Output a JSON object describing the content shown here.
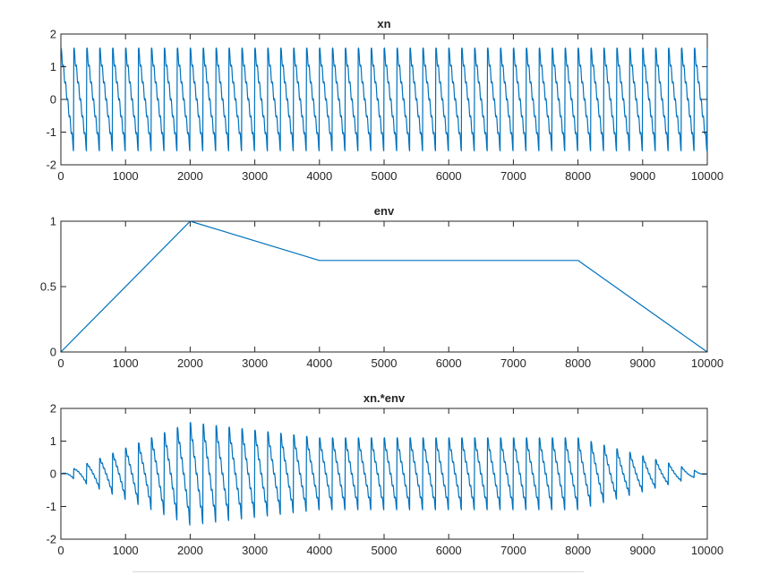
{
  "chart_data": [
    {
      "type": "line",
      "title": "xn",
      "xlabel": "",
      "ylabel": "",
      "xlim": [
        0,
        10000
      ],
      "ylim": [
        -2,
        2
      ],
      "xticks": [
        0,
        1000,
        2000,
        3000,
        4000,
        5000,
        6000,
        7000,
        8000,
        9000,
        10000
      ],
      "yticks": [
        -2,
        -1,
        0,
        1,
        2
      ],
      "grid": false,
      "color": "#0072BD",
      "signal": {
        "shape": "sawtooth with harmonic ripple",
        "period": 200,
        "peak": 1.55,
        "trough": -1.55,
        "x_range": [
          0,
          10000
        ]
      }
    },
    {
      "type": "line",
      "title": "env",
      "xlabel": "",
      "ylabel": "",
      "xlim": [
        0,
        10000
      ],
      "ylim": [
        0,
        1
      ],
      "xticks": [
        0,
        1000,
        2000,
        3000,
        4000,
        5000,
        6000,
        7000,
        8000,
        9000,
        10000
      ],
      "yticks": [
        0,
        0.5,
        1
      ],
      "grid": false,
      "color": "#0072BD",
      "x": [
        0,
        2000,
        4000,
        8000,
        10000
      ],
      "y": [
        0,
        1,
        0.7,
        0.7,
        0
      ]
    },
    {
      "type": "line",
      "title": "xn.*env",
      "xlabel": "",
      "ylabel": "",
      "xlim": [
        0,
        10000
      ],
      "ylim": [
        -2,
        2
      ],
      "xticks": [
        0,
        1000,
        2000,
        3000,
        4000,
        5000,
        6000,
        7000,
        8000,
        9000,
        10000
      ],
      "yticks": [
        -2,
        -1,
        0,
        1,
        2
      ],
      "grid": false,
      "color": "#0072BD",
      "signal": {
        "shape": "xn multiplied by env",
        "period": 200,
        "peak_amplitude": 1.55,
        "x_range": [
          0,
          10000
        ]
      }
    }
  ]
}
